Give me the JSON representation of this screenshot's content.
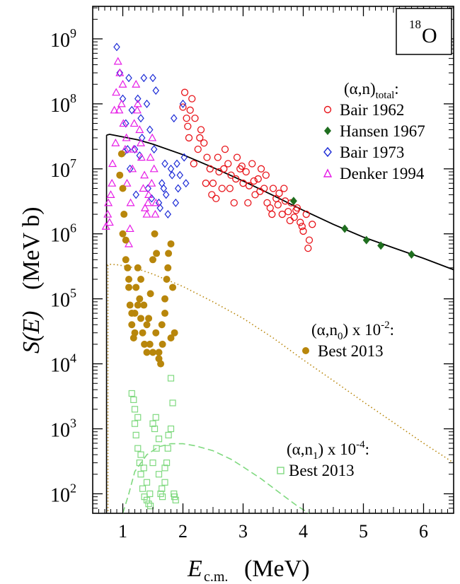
{
  "chart_data": {
    "type": "scatter",
    "xlabel": "E",
    "xlabel_sub": "c.m.",
    "xlabel_unit": "(MeV)",
    "ylabel": "S(E)",
    "ylabel_unit": "(MeV b)",
    "xlim": [
      0.5,
      6.5
    ],
    "ylog": true,
    "ylim_exp": [
      1.7,
      9.5
    ],
    "xticks": [
      1,
      2,
      3,
      4,
      5,
      6
    ],
    "yticks_exp": [
      2,
      3,
      4,
      5,
      6,
      7,
      8,
      9
    ],
    "nucleus_box": {
      "mass": "18",
      "symbol": "O"
    },
    "grid": false,
    "legend_groups": [
      {
        "title_pre": "(α,n)",
        "title_sub": "total",
        "title_post": ":",
        "entries": [
          "Bair 1962",
          "Hansen 1967",
          "Bair 1973",
          "Denker 1994"
        ]
      },
      {
        "title_pre": "(α,n",
        "title_sub": "0",
        "title_post": ") x 10",
        "title_exp": "-2",
        "title_end": ":",
        "entries": [
          "Best 2013"
        ]
      },
      {
        "title_pre": "(α,n",
        "title_sub": "1",
        "title_post": ") x 10",
        "title_exp": "-4",
        "title_end": ":",
        "entries": [
          "Best 2013"
        ]
      }
    ],
    "series": [
      {
        "name": "Bair 1962",
        "marker": "open-circle",
        "color": "#e8141a",
        "x": [
          2.0,
          2.03,
          2.06,
          2.1,
          2.15,
          2.2,
          2.25,
          2.3,
          2.35,
          2.4,
          2.45,
          2.5,
          2.55,
          2.6,
          2.65,
          2.7,
          2.75,
          2.8,
          2.85,
          2.9,
          2.95,
          3.0,
          3.05,
          3.1,
          3.15,
          3.2,
          3.25,
          3.3,
          3.35,
          3.4,
          3.45,
          3.5,
          3.55,
          3.6,
          3.65,
          3.7,
          3.75,
          3.8,
          3.85,
          3.9,
          3.95,
          4.0,
          4.05,
          4.1,
          4.15,
          2.08,
          2.12,
          2.18,
          2.28,
          2.38,
          2.48,
          2.58,
          2.68,
          2.78,
          2.88,
          2.98,
          3.08,
          3.18,
          3.28,
          3.38,
          3.48,
          3.58,
          3.68,
          3.78,
          3.88,
          3.98,
          4.08
        ],
        "y": [
          89000000.0,
          150000000.0,
          60000000.0,
          30000000.0,
          120000000.0,
          60000000.0,
          20000000.0,
          40000000.0,
          25000000.0,
          15000000.0,
          10000000.0,
          6000000.0,
          3500000.0,
          9000000.0,
          5000000.0,
          20000000.0,
          12000000.0,
          8000000.0,
          3000000.0,
          15000000.0,
          10000000.0,
          6000000.0,
          9000000.0,
          5500000.0,
          12000000.0,
          4000000.0,
          7000000.0,
          10000000.0,
          5000000.0,
          3000000.0,
          2500000.0,
          5000000.0,
          3500000.0,
          4200000.0,
          2000000.0,
          3200000.0,
          2200000.0,
          3000000.0,
          1800000.0,
          2500000.0,
          1500000.0,
          1100000.0,
          2000000.0,
          800000.0,
          1400000.0,
          45000000.0,
          80000000.0,
          12000000.0,
          30000000.0,
          6000000.0,
          4000000.0,
          15000000.0,
          10000000.0,
          5000000.0,
          7000000.0,
          11000000.0,
          3000000.0,
          6500000.0,
          4500000.0,
          8000000.0,
          2000000.0,
          2800000.0,
          5000000.0,
          1600000.0,
          2300000.0,
          1300000.0,
          600000.0
        ]
      },
      {
        "name": "Hansen 1967",
        "marker": "filled-diamond",
        "color": "#1f6e1f",
        "x": [
          3.84,
          4.69,
          5.05,
          5.29,
          5.8
        ],
        "y": [
          3200000.0,
          1200000.0,
          800000.0,
          660000.0,
          480000.0
        ]
      },
      {
        "name": "Bair 1973",
        "marker": "open-diamond",
        "color": "#1c2bd6",
        "x": [
          0.9,
          0.95,
          1.0,
          1.05,
          1.1,
          1.15,
          1.2,
          1.25,
          1.3,
          1.35,
          1.4,
          1.45,
          1.5,
          1.55,
          1.6,
          1.65,
          1.7,
          1.75,
          1.8,
          1.85,
          1.9,
          1.95,
          2.0,
          2.05,
          1.02,
          1.12,
          1.22,
          1.32,
          1.42,
          1.52,
          1.62,
          1.72,
          1.82,
          1.92,
          2.02,
          1.08,
          1.28,
          1.48,
          1.68,
          1.88
        ],
        "y": [
          750000000.0,
          300000000.0,
          120000000.0,
          50000000.0,
          250000000.0,
          80000000.0,
          20000000.0,
          120000000.0,
          60000000.0,
          250000000.0,
          100000000.0,
          40000000.0,
          250000000.0,
          160000000.0,
          3000000.0,
          6000000.0,
          12000000.0,
          2000000.0,
          10000000.0,
          60000000.0,
          12000000.0,
          8000000.0,
          100000000.0,
          6000000.0,
          18000000.0,
          10000000.0,
          4000000.0,
          30000000.0,
          5000000.0,
          20000000.0,
          2500000.0,
          4000000.0,
          8000000.0,
          5000000.0,
          15000000.0,
          20000000.0,
          16000000.0,
          3500000.0,
          5000000.0,
          3000000.0
        ]
      },
      {
        "name": "Denker 1994",
        "marker": "open-triangle",
        "color": "#e61ce6",
        "x": [
          0.72,
          0.75,
          0.78,
          0.8,
          0.83,
          0.86,
          0.89,
          0.92,
          0.95,
          0.98,
          1.01,
          1.04,
          1.07,
          1.1,
          1.13,
          1.16,
          1.19,
          1.22,
          1.25,
          1.28,
          1.31,
          1.34,
          1.37,
          1.4,
          1.43,
          1.46,
          1.49,
          1.52,
          1.55,
          0.76,
          0.82,
          0.88,
          0.94,
          1.0,
          1.06,
          1.12,
          1.18,
          1.24,
          1.3,
          1.36,
          1.42,
          1.48,
          1.54
        ],
        "y": [
          1300000.0,
          2000000.0,
          1500000.0,
          4000000.0,
          12000000.0,
          80000000.0,
          150000000.0,
          450000000.0,
          300000000.0,
          100000000.0,
          50000000.0,
          20000000.0,
          6000000.0,
          700000.0,
          3000000.0,
          10000000.0,
          50000000.0,
          200000000.0,
          100000000.0,
          40000000.0,
          15000000.0,
          5000000.0,
          2500000.0,
          2000000.0,
          4000000.0,
          15000000.0,
          30000000.0,
          10000000.0,
          3000000.0,
          3000000.0,
          6000000.0,
          25000000.0,
          80000000.0,
          200000000.0,
          30000000.0,
          1200000.0,
          20000000.0,
          80000000.0,
          25000000.0,
          8000000.0,
          3000000.0,
          6000000.0,
          2000000.0
        ]
      },
      {
        "name": "Best 2013 (α,n0) x 10-2",
        "marker": "filled-circle",
        "color": "#b8860b",
        "x": [
          0.95,
          0.98,
          1.0,
          1.02,
          1.05,
          1.08,
          1.1,
          1.12,
          1.15,
          1.18,
          1.2,
          1.22,
          1.25,
          1.28,
          1.3,
          1.33,
          1.36,
          1.4,
          1.43,
          1.46,
          1.5,
          1.53,
          1.56,
          1.6,
          1.63,
          1.66,
          1.7,
          1.73,
          1.76,
          1.8,
          1.83,
          1.86,
          1.0,
          1.05,
          1.1,
          1.15,
          1.2,
          1.25,
          1.3,
          1.35,
          1.4,
          1.45,
          1.5,
          1.55,
          1.6,
          1.65,
          1.7,
          1.75,
          1.8
        ],
        "y": [
          8000000.0,
          17000000.0,
          5000000.0,
          2000000.0,
          800000.0,
          300000.0,
          150000.0,
          80000.0,
          40000.0,
          25000.0,
          60000.0,
          150000.0,
          300000.0,
          100000.0,
          50000.0,
          30000.0,
          20000.0,
          15000.0,
          50000.0,
          120000.0,
          400000.0,
          1000000.0,
          500000.0,
          12000.0,
          10000.0,
          20000.0,
          60000.0,
          200000.0,
          500000.0,
          700000.0,
          150000.0,
          30000.0,
          1000000.0,
          400000.0,
          200000.0,
          60000.0,
          30000.0,
          80000.0,
          200000.0,
          80000.0,
          40000.0,
          20000.0,
          15000.0,
          30000.0,
          15000.0,
          40000.0,
          100000.0,
          300000.0,
          25000.0
        ]
      },
      {
        "name": "Best 2013 (α,n1) x 10-4",
        "marker": "open-square",
        "color": "#7fd97f",
        "x": [
          1.15,
          1.18,
          1.2,
          1.22,
          1.25,
          1.28,
          1.3,
          1.33,
          1.36,
          1.4,
          1.43,
          1.46,
          1.5,
          1.53,
          1.56,
          1.6,
          1.63,
          1.66,
          1.7,
          1.73,
          1.76,
          1.8,
          1.83,
          1.86,
          1.88,
          1.2,
          1.25,
          1.3,
          1.35,
          1.4,
          1.45,
          1.5,
          1.55,
          1.6,
          1.65,
          1.7,
          1.75,
          1.8,
          1.85
        ],
        "y": [
          3500.0,
          2800.0,
          1200.0,
          800.0,
          500.0,
          300.0,
          200.0,
          120.0,
          90.0,
          80.0,
          70.0,
          65.0,
          1200.0,
          1000.0,
          500.0,
          200.0,
          100.0,
          90.0,
          150.0,
          300.0,
          800.0,
          6000.0,
          2500.0,
          90.0,
          80.0,
          2000.0,
          1500.0,
          400.0,
          250.0,
          150.0,
          100.0,
          300.0,
          1500.0,
          700.0,
          120.0,
          250.0,
          500.0,
          1000.0,
          100.0
        ]
      }
    ],
    "curves": [
      {
        "role": "total",
        "style": "solid",
        "color": "#000000",
        "x": [
          0.73,
          0.78,
          0.85,
          1.0,
          1.25,
          1.5,
          2.0,
          2.5,
          3.0,
          3.5,
          4.0,
          4.5,
          5.0,
          5.5,
          6.0,
          6.5
        ],
        "y": [
          33000000.0,
          34000000.0,
          33000000.0,
          31000000.0,
          28000000.0,
          24000000.0,
          16500000.0,
          10500000.0,
          6500000.0,
          3900000.0,
          2300000.0,
          1400000.0,
          890000.0,
          610000.0,
          420000.0,
          280000.0
        ]
      },
      {
        "role": "n0",
        "style": "dotted",
        "color": "#b8860b",
        "x": [
          0.73,
          0.78,
          0.9,
          1.2,
          1.5,
          2.0,
          2.5,
          3.0,
          3.5,
          4.0,
          4.5,
          5.0,
          5.5,
          6.0,
          6.5
        ],
        "y": [
          330000.0,
          340000.0,
          335000.0,
          300000.0,
          240000.0,
          155000.0,
          90000.0,
          50000.0,
          25000.0,
          11500.0,
          5500.0,
          2600.0,
          1250.0,
          600.0,
          300.0
        ]
      },
      {
        "role": "n1",
        "style": "dashed",
        "color": "#7fd97f",
        "x": [
          1.0,
          1.1,
          1.2,
          1.4,
          1.6,
          1.8,
          2.0,
          2.2,
          2.5,
          2.8,
          3.0,
          3.3,
          3.6,
          3.9,
          4.1
        ],
        "y": [
          50,
          100.0,
          220.0,
          400.0,
          530.0,
          590.0,
          590.0,
          550.0,
          460.0,
          340.0,
          260.0,
          170.0,
          105.0,
          65.0,
          50
        ]
      }
    ]
  }
}
